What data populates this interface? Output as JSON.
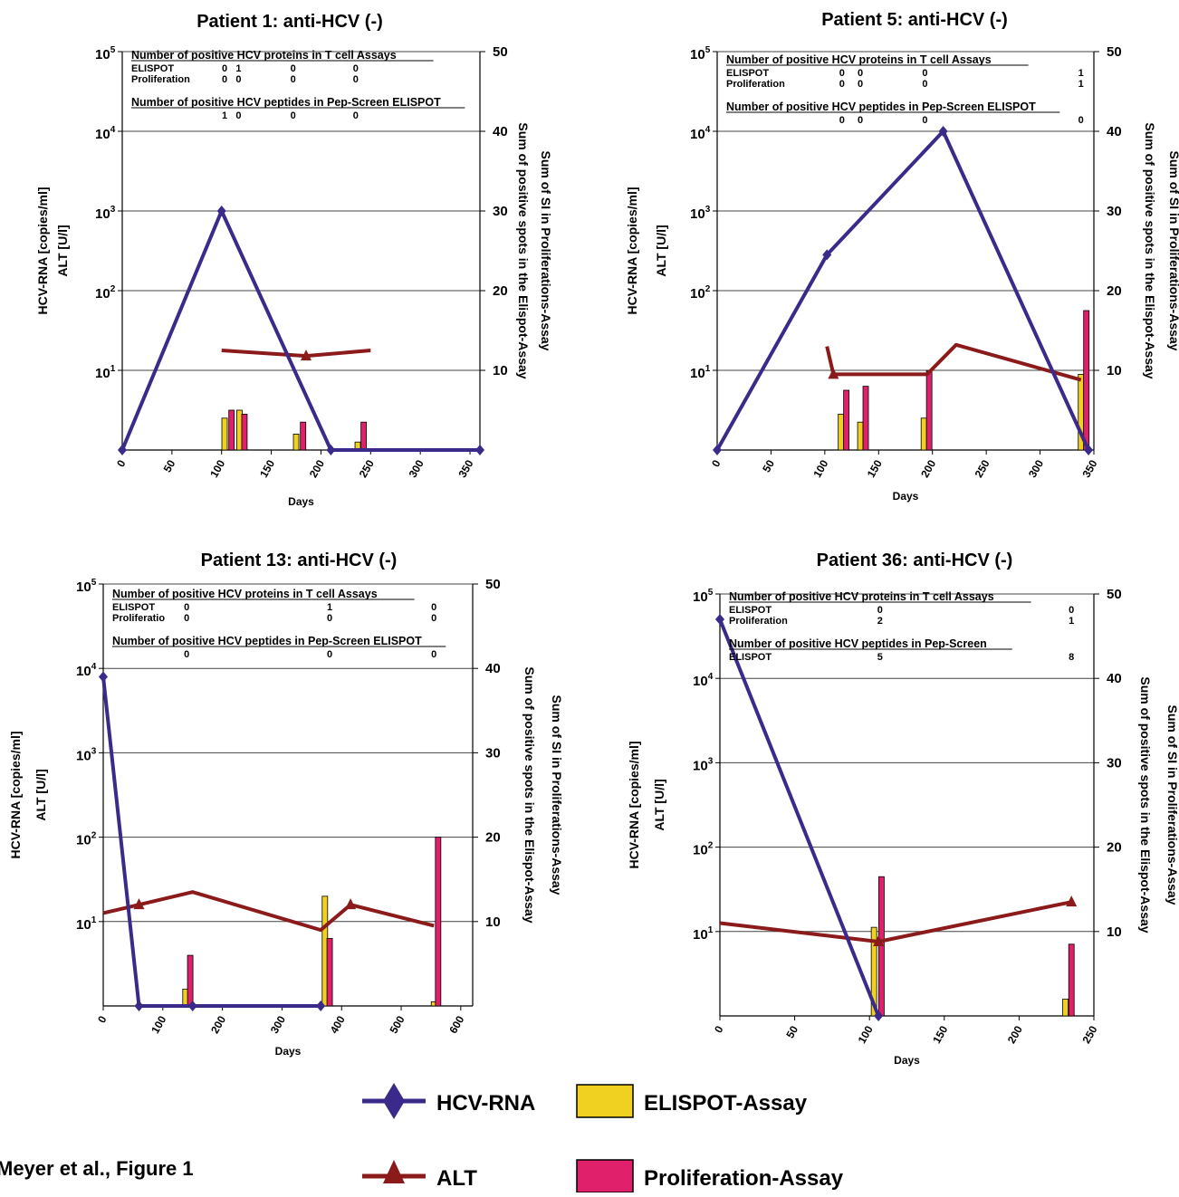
{
  "figure_caption": "Meyer et al., Figure 1",
  "legend": [
    {
      "label": "HCV-RNA",
      "marker": "diamond",
      "color": "#3b2a8a"
    },
    {
      "label": "ELISPOT-Assay",
      "marker": "square",
      "color": "#f0d020"
    },
    {
      "label": "ALT",
      "marker": "triangle",
      "color": "#8b1a1a"
    },
    {
      "label": "Proliferation-Assay",
      "marker": "square",
      "color": "#e0206a"
    }
  ],
  "colors": {
    "hcv": "#3b2a8a",
    "alt": "#8b1a1a",
    "elispot": "#f0d020",
    "prolif": "#e0206a",
    "grid": "#444444"
  },
  "chart_data": [
    {
      "type": "line+bar",
      "title": "Patient 1: anti-HCV (-)",
      "xlabel": "Days",
      "ylabel_left": [
        "HCV-RNA [copies/ml]",
        "ALT [U/l]"
      ],
      "ylabel_right": [
        "Sum of SI in Proliferations-Assay",
        "Sum of positive spots in the Elispot-Assay"
      ],
      "xlim": [
        0,
        360
      ],
      "x_ticks": [
        "0",
        "50",
        "100",
        "150",
        "200",
        "250",
        "300",
        "350"
      ],
      "x_tick_values": [
        0,
        50,
        100,
        150,
        200,
        250,
        300,
        350
      ],
      "y_left_ticks": [
        {
          "base": "10",
          "exp": "1"
        },
        {
          "base": "10",
          "exp": "2"
        },
        {
          "base": "10",
          "exp": "3"
        },
        {
          "base": "10",
          "exp": "4"
        },
        {
          "base": "10",
          "exp": "5"
        }
      ],
      "y_right_ticks": [
        "10",
        "20",
        "30",
        "40",
        "50"
      ],
      "y_right_lim": [
        0,
        50
      ],
      "hcv_rna": [
        {
          "x": 0,
          "y": 0
        },
        {
          "x": 100,
          "y": 30
        },
        {
          "x": 210,
          "y": 0
        },
        {
          "x": 360,
          "y": 0
        }
      ],
      "alt": [
        {
          "x": 100,
          "y": 12.5
        },
        {
          "x": 185,
          "y": 11.8
        },
        {
          "x": 250,
          "y": 12.5
        }
      ],
      "alt_markers": [
        {
          "x": 185,
          "y": 11.8
        }
      ],
      "elispot": [
        {
          "x": 103,
          "y": 4
        },
        {
          "x": 118,
          "y": 5
        },
        {
          "x": 175,
          "y": 2
        },
        {
          "x": 237,
          "y": 1
        }
      ],
      "proliferation": [
        {
          "x": 110,
          "y": 5
        },
        {
          "x": 123,
          "y": 4.5
        },
        {
          "x": 182,
          "y": 3.5
        },
        {
          "x": 243,
          "y": 3.5
        }
      ],
      "note_tables": [
        {
          "heading": "Number of positive HCV proteins in T cell Assays",
          "rows": [
            {
              "label": "ELISPOT",
              "values": [
                {
                  "x": 103,
                  "v": "0"
                },
                {
                  "x": 117,
                  "v": "1"
                },
                {
                  "x": 172,
                  "v": "0"
                },
                {
                  "x": 235,
                  "v": "0"
                }
              ]
            },
            {
              "label": "Proliferation",
              "values": [
                {
                  "x": 103,
                  "v": "0"
                },
                {
                  "x": 117,
                  "v": "0"
                },
                {
                  "x": 172,
                  "v": "0"
                },
                {
                  "x": 235,
                  "v": "0"
                }
              ]
            }
          ]
        },
        {
          "heading": "Number of positive HCV peptides in Pep-Screen ELISPOT",
          "rows": [
            {
              "label": "",
              "values": [
                {
                  "x": 103,
                  "v": "1"
                },
                {
                  "x": 117,
                  "v": "0"
                },
                {
                  "x": 172,
                  "v": "0"
                },
                {
                  "x": 235,
                  "v": "0"
                }
              ]
            }
          ]
        }
      ]
    },
    {
      "type": "line+bar",
      "title": "Patient 5: anti-HCV (-)",
      "xlabel": "Days",
      "ylabel_left": [
        "HCV-RNA [copies/ml]",
        "ALT [U/l]"
      ],
      "ylabel_right": [
        "Sum of SI in Proliferations-Assay",
        "Sum of positive spots in the Elispot-Assay"
      ],
      "xlim": [
        0,
        350
      ],
      "x_ticks": [
        "0",
        "50",
        "100",
        "150",
        "200",
        "250",
        "300",
        "350"
      ],
      "x_tick_values": [
        0,
        50,
        100,
        150,
        200,
        250,
        300,
        350
      ],
      "y_left_ticks": [
        {
          "base": "10",
          "exp": "1"
        },
        {
          "base": "10",
          "exp": "2"
        },
        {
          "base": "10",
          "exp": "3"
        },
        {
          "base": "10",
          "exp": "4"
        },
        {
          "base": "10",
          "exp": "5"
        }
      ],
      "y_right_ticks": [
        "10",
        "20",
        "30",
        "40",
        "50"
      ],
      "y_right_lim": [
        0,
        50
      ],
      "hcv_rna": [
        {
          "x": 0,
          "y": 0
        },
        {
          "x": 102,
          "y": 24.5
        },
        {
          "x": 210,
          "y": 40
        },
        {
          "x": 345,
          "y": 0
        }
      ],
      "alt": [
        {
          "x": 102,
          "y": 13
        },
        {
          "x": 108,
          "y": 9.5
        },
        {
          "x": 195,
          "y": 9.5
        },
        {
          "x": 222,
          "y": 13.2
        },
        {
          "x": 338,
          "y": 8.8
        }
      ],
      "alt_markers": [
        {
          "x": 108,
          "y": 9.5
        }
      ],
      "elispot": [
        {
          "x": 115,
          "y": 4.5
        },
        {
          "x": 133,
          "y": 3.5
        },
        {
          "x": 192,
          "y": 4
        },
        {
          "x": 338,
          "y": 9.5
        }
      ],
      "proliferation": [
        {
          "x": 120,
          "y": 7.5
        },
        {
          "x": 138,
          "y": 8
        },
        {
          "x": 197,
          "y": 10
        },
        {
          "x": 343,
          "y": 17.5
        }
      ],
      "note_tables": [
        {
          "heading": "Number of positive HCV proteins in T cell Assays",
          "rows": [
            {
              "label": "ELISPOT",
              "values": [
                {
                  "x": 116,
                  "v": "0"
                },
                {
                  "x": 133,
                  "v": "0"
                },
                {
                  "x": 193,
                  "v": "0"
                },
                {
                  "x": 338,
                  "v": "1"
                }
              ]
            },
            {
              "label": "Proliferation",
              "values": [
                {
                  "x": 116,
                  "v": "0"
                },
                {
                  "x": 133,
                  "v": "0"
                },
                {
                  "x": 193,
                  "v": "0"
                },
                {
                  "x": 338,
                  "v": "1"
                }
              ]
            }
          ]
        },
        {
          "heading": "Number of positive HCV peptides in Pep-Screen ELISPOT",
          "rows": [
            {
              "label": "",
              "values": [
                {
                  "x": 116,
                  "v": "0"
                },
                {
                  "x": 133,
                  "v": "0"
                },
                {
                  "x": 193,
                  "v": "0"
                },
                {
                  "x": 338,
                  "v": "0"
                }
              ]
            }
          ]
        }
      ]
    },
    {
      "type": "line+bar",
      "title": "Patient 13: anti-HCV (-)",
      "xlabel": "Days",
      "ylabel_left": [
        "HCV-RNA [copies/ml]",
        "ALT [U/l]"
      ],
      "ylabel_right": [
        "Sum of SI in Proliferations-Assay",
        "Sum of positive spots in the Elispot-Assay"
      ],
      "xlim": [
        0,
        620
      ],
      "x_ticks": [
        "0",
        "100",
        "200",
        "300",
        "400",
        "500",
        "600"
      ],
      "x_tick_values": [
        0,
        100,
        200,
        300,
        400,
        500,
        600
      ],
      "y_left_ticks": [
        {
          "base": "10",
          "exp": "1"
        },
        {
          "base": "10",
          "exp": "2"
        },
        {
          "base": "10",
          "exp": "3"
        },
        {
          "base": "10",
          "exp": "4"
        },
        {
          "base": "10",
          "exp": "5"
        }
      ],
      "y_right_ticks": [
        "10",
        "20",
        "30",
        "40",
        "50"
      ],
      "y_right_lim": [
        0,
        50
      ],
      "hcv_rna": [
        {
          "x": 0,
          "y": 39
        },
        {
          "x": 60,
          "y": 0
        },
        {
          "x": 150,
          "y": 0
        },
        {
          "x": 365,
          "y": 0
        }
      ],
      "alt": [
        {
          "x": 0,
          "y": 11
        },
        {
          "x": 60,
          "y": 12
        },
        {
          "x": 150,
          "y": 13.5
        },
        {
          "x": 365,
          "y": 9
        },
        {
          "x": 415,
          "y": 12
        },
        {
          "x": 555,
          "y": 9.5
        }
      ],
      "alt_markers": [
        {
          "x": 60,
          "y": 12
        },
        {
          "x": 415,
          "y": 12
        }
      ],
      "elispot": [
        {
          "x": 138,
          "y": 2
        },
        {
          "x": 372,
          "y": 13
        },
        {
          "x": 555,
          "y": 0.5
        }
      ],
      "proliferation": [
        {
          "x": 146,
          "y": 6
        },
        {
          "x": 380,
          "y": 8
        },
        {
          "x": 562,
          "y": 20
        }
      ],
      "note_tables": [
        {
          "heading": "Number of positive HCV proteins in T cell Assays",
          "rows": [
            {
              "label": "ELISPOT",
              "values": [
                {
                  "x": 140,
                  "v": "0"
                },
                {
                  "x": 380,
                  "v": "1"
                },
                {
                  "x": 555,
                  "v": "0"
                }
              ]
            },
            {
              "label": "Proliferatio",
              "values": [
                {
                  "x": 140,
                  "v": "0"
                },
                {
                  "x": 380,
                  "v": "0"
                },
                {
                  "x": 555,
                  "v": "0"
                }
              ]
            }
          ]
        },
        {
          "heading": "Number of positive HCV peptides in Pep-Screen ELISPOT",
          "rows": [
            {
              "label": "",
              "values": [
                {
                  "x": 140,
                  "v": "0"
                },
                {
                  "x": 380,
                  "v": "0"
                },
                {
                  "x": 555,
                  "v": "0"
                }
              ]
            }
          ]
        }
      ]
    },
    {
      "type": "line+bar",
      "title": "Patient 36: anti-HCV (-)",
      "xlabel": "Days",
      "ylabel_left": [
        "HCV-RNA [copies/ml]",
        "ALT [U/l]"
      ],
      "ylabel_right": [
        "Sum of SI in Proliferations-Assay",
        "Sum of positive spots in the Elispot-Assay"
      ],
      "xlim": [
        0,
        250
      ],
      "x_ticks": [
        "0",
        "50",
        "100",
        "150",
        "200",
        "250"
      ],
      "x_tick_values": [
        0,
        50,
        100,
        150,
        200,
        250
      ],
      "y_left_ticks": [
        {
          "base": "10",
          "exp": "1"
        },
        {
          "base": "10",
          "exp": "2"
        },
        {
          "base": "10",
          "exp": "3"
        },
        {
          "base": "10",
          "exp": "4"
        },
        {
          "base": "10",
          "exp": "5"
        }
      ],
      "y_right_ticks": [
        "10",
        "20",
        "30",
        "40",
        "50"
      ],
      "y_right_lim": [
        0,
        50
      ],
      "hcv_rna": [
        {
          "x": 0,
          "y": 47
        },
        {
          "x": 106,
          "y": 0
        }
      ],
      "alt": [
        {
          "x": 0,
          "y": 11
        },
        {
          "x": 106,
          "y": 8.8
        },
        {
          "x": 235,
          "y": 13.5
        }
      ],
      "alt_markers": [
        {
          "x": 106,
          "y": 8.8
        },
        {
          "x": 235,
          "y": 13.5
        }
      ],
      "elispot": [
        {
          "x": 103,
          "y": 10.5
        },
        {
          "x": 231,
          "y": 2
        }
      ],
      "proliferation": [
        {
          "x": 108,
          "y": 16.5
        },
        {
          "x": 235,
          "y": 8.5
        }
      ],
      "note_tables": [
        {
          "heading": "Number of positive HCV proteins in T cell Assays",
          "rows": [
            {
              "label": "ELISPOT",
              "values": [
                {
                  "x": 107,
                  "v": "0"
                },
                {
                  "x": 235,
                  "v": "0"
                }
              ]
            },
            {
              "label": "Proliferation",
              "values": [
                {
                  "x": 107,
                  "v": "2"
                },
                {
                  "x": 235,
                  "v": "1"
                }
              ]
            }
          ]
        },
        {
          "heading": "Number of positive HCV peptides in Pep-Screen",
          "rows": [
            {
              "label": "ELISPOT",
              "values": [
                {
                  "x": 107,
                  "v": "5"
                },
                {
                  "x": 235,
                  "v": "8"
                }
              ]
            }
          ]
        }
      ]
    }
  ]
}
